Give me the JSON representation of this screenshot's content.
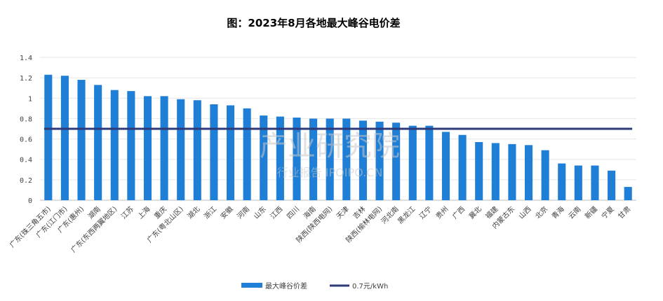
{
  "chart_data": {
    "type": "bar",
    "title": "图：2023年8月各地最大峰谷电价差",
    "xlabel": "",
    "ylabel": "",
    "ylim": [
      0,
      1.4
    ],
    "yticks": [
      "0",
      "0.2",
      "0.4",
      "0.6",
      "0.8",
      "1",
      "1.2",
      "1.4"
    ],
    "grid": true,
    "legend_position": "bottom",
    "categories": [
      "广东(珠三角五市)",
      "广东(江门市)",
      "广东(惠州)",
      "湖南",
      "广东(东西两翼地区)",
      "江苏",
      "上海",
      "重庆",
      "广东(粤北山区)",
      "湖北",
      "浙江",
      "安徽",
      "河南",
      "山东",
      "江西",
      "四川",
      "海南",
      "陕西(陕西电网)",
      "天津",
      "吉林",
      "陕西(榆林电网)",
      "河北南",
      "黑龙江",
      "辽宁",
      "贵州",
      "广西",
      "冀北",
      "福建",
      "内蒙古东",
      "山西",
      "北京",
      "青海",
      "云南",
      "新疆",
      "宁夏",
      "甘肃"
    ],
    "series": [
      {
        "name": "最大峰谷价差",
        "color": "#1f7fd6",
        "values": [
          1.23,
          1.22,
          1.18,
          1.13,
          1.08,
          1.07,
          1.02,
          1.02,
          0.99,
          0.98,
          0.94,
          0.93,
          0.9,
          0.83,
          0.82,
          0.81,
          0.8,
          0.8,
          0.8,
          0.78,
          0.77,
          0.76,
          0.73,
          0.73,
          0.67,
          0.64,
          0.57,
          0.56,
          0.55,
          0.54,
          0.49,
          0.36,
          0.34,
          0.34,
          0.29,
          0.13
        ]
      }
    ],
    "reference_line": {
      "name": "0.7元/kWh",
      "value": 0.7,
      "color": "#2e3a78"
    }
  },
  "watermark": {
    "brand": "产业研究院",
    "site": "行业报告 IPOIPO.CN"
  }
}
